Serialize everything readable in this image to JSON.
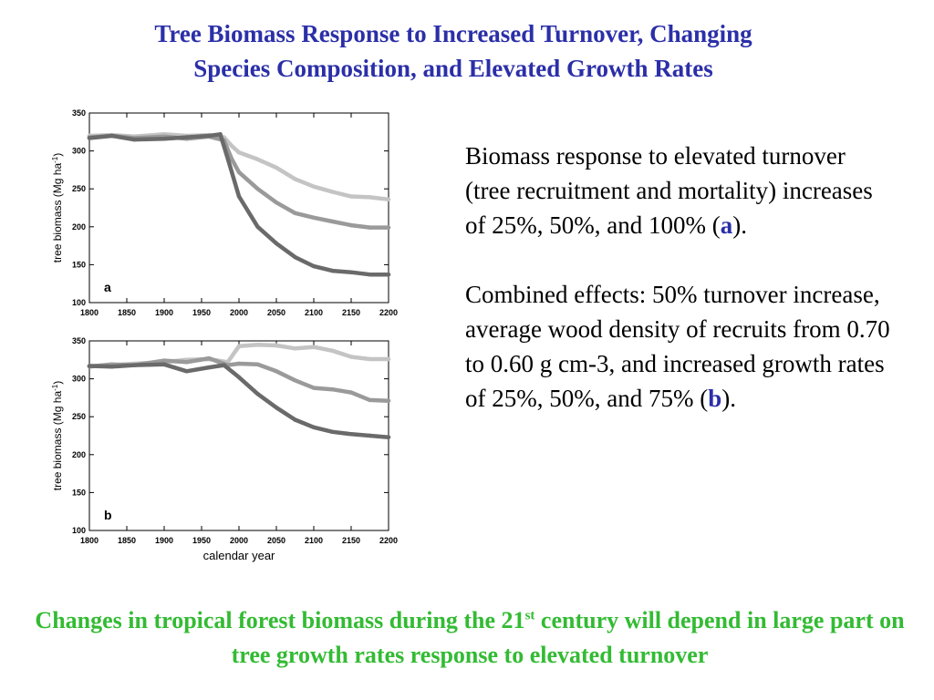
{
  "title": {
    "line1": "Tree Biomass Response to Increased Turnover, Changing",
    "line2": "Species Composition, and Elevated Growth Rates"
  },
  "description": {
    "para1_before": "Biomass response to elevated turnover (tree recruitment and mortality) increases of 25%, 50%, and 100% (",
    "para1_ref": "a",
    "para1_after": ").",
    "para2_before": "Combined effects:  50% turnover increase, average wood density of recruits from 0.70 to 0.60 g cm-3, and increased growth rates of 25%, 50%, and 75% (",
    "para2_ref": "b",
    "para2_after": ")."
  },
  "footer": {
    "part1": "Changes in tropical forest biomass during the 21",
    "sup": "st",
    "part2": " century will depend in large part on tree growth rates response to elevated turnover"
  },
  "colors": {
    "title": "#2b2fa8",
    "footer": "#33bb33",
    "series_light": "#c4c4c4",
    "series_mid": "#9a9a9a",
    "series_dark": "#6a6a6a"
  },
  "chart_data": [
    {
      "type": "line",
      "panel_label": "a",
      "ylabel": "tree biomass (Mg ha",
      "ylabel_sup": "-1",
      "ylabel_close": ")",
      "xlabel": "",
      "xlim": [
        1800,
        2200
      ],
      "ylim": [
        100,
        350
      ],
      "xticks": [
        1800,
        1850,
        1900,
        1950,
        2000,
        2050,
        2100,
        2150,
        2200
      ],
      "yticks": [
        100,
        150,
        200,
        250,
        300,
        350
      ],
      "series": [
        {
          "color": "#c4c4c4",
          "x": [
            1800,
            1830,
            1860,
            1900,
            1930,
            1960,
            1980,
            1990,
            2000,
            2025,
            2050,
            2075,
            2100,
            2125,
            2150,
            2175,
            2200
          ],
          "y": [
            320,
            321,
            319,
            322,
            320,
            321,
            318,
            307,
            298,
            289,
            278,
            263,
            253,
            246,
            240,
            239,
            236
          ]
        },
        {
          "color": "#9a9a9a",
          "x": [
            1800,
            1830,
            1860,
            1900,
            1930,
            1960,
            1980,
            1990,
            2000,
            2025,
            2050,
            2075,
            2100,
            2125,
            2150,
            2175,
            2200
          ],
          "y": [
            318,
            320,
            317,
            319,
            316,
            319,
            314,
            290,
            272,
            250,
            232,
            218,
            212,
            207,
            202,
            199,
            199
          ]
        },
        {
          "color": "#6a6a6a",
          "x": [
            1800,
            1830,
            1860,
            1900,
            1930,
            1960,
            1975,
            1985,
            2000,
            2025,
            2050,
            2075,
            2100,
            2125,
            2150,
            2175,
            2200
          ],
          "y": [
            317,
            320,
            315,
            316,
            318,
            320,
            322,
            290,
            240,
            200,
            178,
            160,
            148,
            142,
            140,
            137,
            137
          ]
        }
      ]
    },
    {
      "type": "line",
      "panel_label": "b",
      "ylabel": "tree biomass (Mg ha",
      "ylabel_sup": "-1",
      "ylabel_close": ")",
      "xlabel": "calendar year",
      "xlim": [
        1800,
        2200
      ],
      "ylim": [
        100,
        350
      ],
      "xticks": [
        1800,
        1850,
        1900,
        1950,
        2000,
        2050,
        2100,
        2150,
        2200
      ],
      "yticks": [
        100,
        150,
        200,
        250,
        300,
        350
      ],
      "series": [
        {
          "color": "#c4c4c4",
          "x": [
            1800,
            1830,
            1860,
            1900,
            1930,
            1960,
            1985,
            2000,
            2025,
            2050,
            2075,
            2100,
            2125,
            2150,
            2175,
            2200
          ],
          "y": [
            317,
            318,
            320,
            322,
            325,
            326,
            322,
            343,
            345,
            344,
            340,
            342,
            337,
            329,
            326,
            326
          ]
        },
        {
          "color": "#9a9a9a",
          "x": [
            1800,
            1830,
            1860,
            1900,
            1930,
            1960,
            1985,
            2000,
            2025,
            2050,
            2075,
            2100,
            2125,
            2150,
            2175,
            2200
          ],
          "y": [
            316,
            319,
            318,
            324,
            322,
            327,
            318,
            320,
            319,
            310,
            298,
            288,
            286,
            282,
            272,
            271
          ]
        },
        {
          "color": "#6a6a6a",
          "x": [
            1800,
            1830,
            1860,
            1900,
            1930,
            1960,
            1980,
            2000,
            2025,
            2050,
            2075,
            2100,
            2125,
            2150,
            2175,
            2200
          ],
          "y": [
            317,
            316,
            318,
            319,
            310,
            315,
            318,
            302,
            280,
            262,
            246,
            236,
            230,
            227,
            225,
            223
          ]
        }
      ]
    }
  ]
}
